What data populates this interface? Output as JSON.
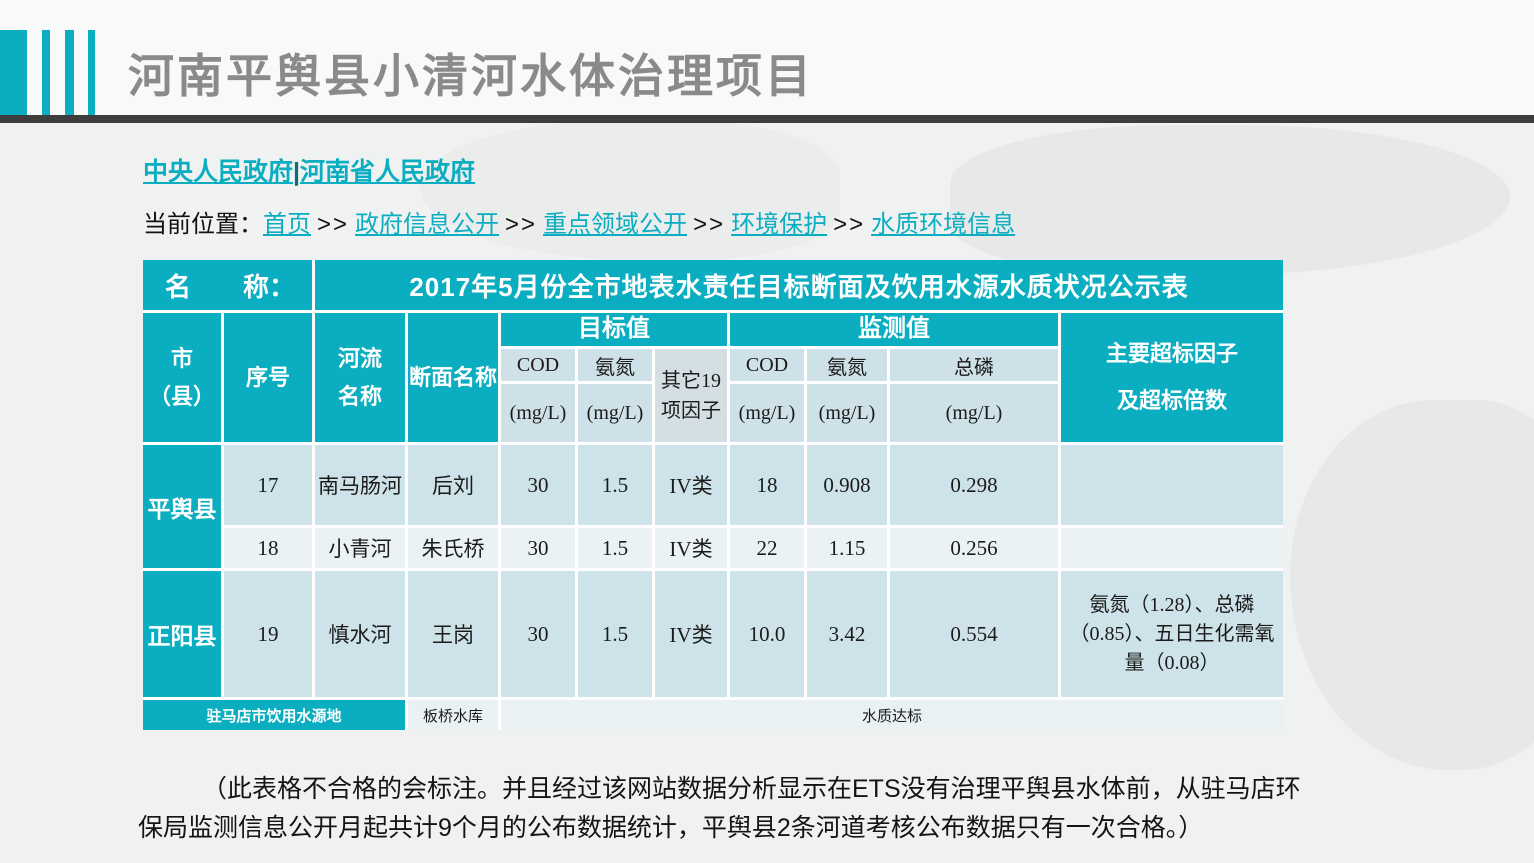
{
  "colors": {
    "teal": "#0aaec0",
    "title_gray": "#8a8a8a",
    "divider": "#3d3d3d",
    "cell_blue": "#cee3e9",
    "cell_blue_light": "#eaf2f4"
  },
  "header": {
    "title": "河南平舆县小清河水体治理项目"
  },
  "gov_links": {
    "central": "中央人民政府",
    "separator": "|",
    "henan": "河南省人民政府"
  },
  "breadcrumb": {
    "label": "当前位置：",
    "separator": ">>",
    "items": [
      "首页",
      "政府信息公开",
      "重点领域公开",
      "环境保护",
      "水质环境信息"
    ]
  },
  "table": {
    "name_label": "名　　称：",
    "name_value": "2017年5月份全市地表水责任目标断面及饮用水源水质状况公示表",
    "headers": {
      "city_line1": "市",
      "city_line2": "（县）",
      "seq": "序号",
      "river_line1": "河流",
      "river_line2": "名称",
      "section": "断面名称",
      "target_group": "目标值",
      "monitor_group": "监测值",
      "cod": "COD",
      "nh3": "氨氮",
      "tp": "总磷",
      "unit": "(mg/L)",
      "other": "其它19项因子",
      "exceed_line1": "主要超标因子",
      "exceed_line2": "及超标倍数"
    },
    "rows": [
      {
        "city": "平舆县",
        "seq": "17",
        "river": "南马肠河",
        "section": "后刘",
        "t_cod": "30",
        "t_nh3": "1.5",
        "t_other": "IV类",
        "m_cod": "18",
        "m_nh3": "0.908",
        "m_tp": "0.298",
        "exceed": ""
      },
      {
        "seq": "18",
        "river": "小青河",
        "section": "朱氏桥",
        "t_cod": "30",
        "t_nh3": "1.5",
        "t_other": "IV类",
        "m_cod": "22",
        "m_nh3": "1.15",
        "m_tp": "0.256",
        "exceed": ""
      },
      {
        "city": "正阳县",
        "seq": "19",
        "river": "慎水河",
        "section": "王岗",
        "t_cod": "30",
        "t_nh3": "1.5",
        "t_other": "IV类",
        "m_cod": "10.0",
        "m_nh3": "3.42",
        "m_tp": "0.554",
        "exceed": "氨氮（1.28）、总磷（0.85）、五日生化需氧量（0.08）"
      }
    ],
    "footer": {
      "source": "驻马店市饮用水源地",
      "section": "板桥水库",
      "status": "水质达标"
    }
  },
  "note": {
    "line1": "（此表格不合格的会标注。并且经过该网站数据分析显示在ETS没有治理平舆县水体前，从驻马店环",
    "line2": "保局监测信息公开月起共计9个月的公布数据统计，平舆县2条河道考核公布数据只有一次合格。）"
  }
}
